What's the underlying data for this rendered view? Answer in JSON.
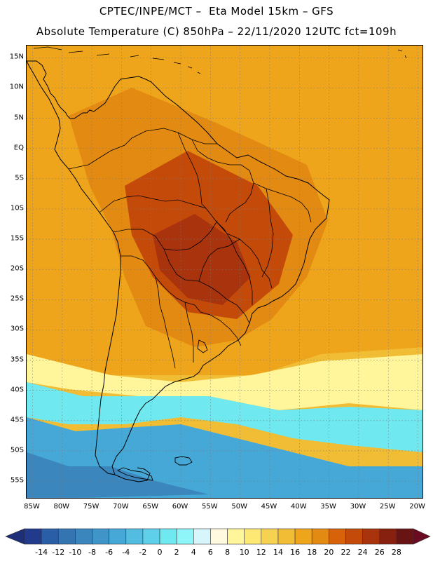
{
  "title": {
    "line1": "CPTEC/INPE/MCT –  Eta Model 15km – GFS",
    "line2": "Absolute Temperature (C) 850hPa – 22/11/2020 12UTC fct=109h"
  },
  "axes": {
    "lat_labels": [
      "15N",
      "10N",
      "5N",
      "EQ",
      "5S",
      "10S",
      "15S",
      "20S",
      "25S",
      "30S",
      "35S",
      "40S",
      "45S",
      "50S",
      "55S"
    ],
    "lon_labels": [
      "85W",
      "80W",
      "75W",
      "70W",
      "65W",
      "60W",
      "55W",
      "50W",
      "45W",
      "40W",
      "35W",
      "30W",
      "25W",
      "20W"
    ],
    "lat_range": [
      -58,
      17
    ],
    "lon_range": [
      -86,
      -19
    ],
    "grid": "dotted"
  },
  "colorbar": {
    "ticks": [
      "-14",
      "-12",
      "-10",
      "-8",
      "-6",
      "-4",
      "-2",
      "0",
      "2",
      "4",
      "6",
      "8",
      "10",
      "12",
      "14",
      "16",
      "18",
      "20",
      "22",
      "24",
      "26",
      "28"
    ],
    "colors": [
      "#223a8c",
      "#2a5ea6",
      "#3374b1",
      "#3a86bd",
      "#3f95c7",
      "#46a8d6",
      "#52bde0",
      "#5fd0ea",
      "#6fe8ef",
      "#8ef6f8",
      "#d6f6fb",
      "#fff9e0",
      "#fff59a",
      "#fde873",
      "#f7d251",
      "#f1bd34",
      "#eea51b",
      "#e38a12",
      "#d8620a",
      "#c44a0a",
      "#a8330c",
      "#882010",
      "#681414"
    ],
    "under_color": "#1c2f78",
    "over_color": "#6a0b22"
  },
  "field": {
    "fill_colors": {
      "ocean_north": "#eea51b",
      "warm_core": "#c44a0a",
      "hot_core": "#a8330c",
      "andes_warm": "#e38a12",
      "temperate": "#f1bd34",
      "pale_band": "#fff59a",
      "cold_band": "#6fe8ef",
      "colder": "#46a8d6",
      "coldest": "#3a86bd"
    }
  }
}
